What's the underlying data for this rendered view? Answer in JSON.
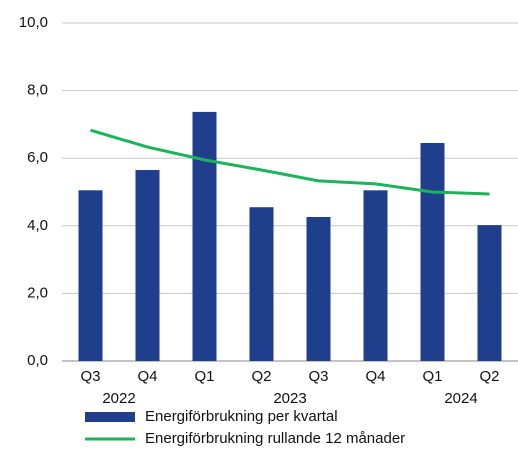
{
  "chart_data": {
    "type": "bar",
    "categories": [
      "Q3",
      "Q4",
      "Q1",
      "Q2",
      "Q3",
      "Q4",
      "Q1",
      "Q2"
    ],
    "category_years": [
      "2022",
      "2022",
      "2023",
      "2023",
      "2023",
      "2023",
      "2024",
      "2024"
    ],
    "series": [
      {
        "name": "Energiförbrukning per kvartal",
        "type": "bar",
        "color": "#1f3e8c",
        "values": [
          5.05,
          5.65,
          7.37,
          4.55,
          4.26,
          5.05,
          6.45,
          4.02
        ]
      },
      {
        "name": "Energiförbrukning rullande 12 månader",
        "type": "line",
        "color": "#1db35a",
        "values": [
          6.83,
          6.33,
          5.95,
          5.65,
          5.33,
          5.24,
          5.0,
          4.94
        ]
      }
    ],
    "ylim": [
      0,
      10
    ],
    "yticks": [
      {
        "value": 0,
        "label": "0,0"
      },
      {
        "value": 2,
        "label": "2,0"
      },
      {
        "value": 4,
        "label": "4,0"
      },
      {
        "value": 6,
        "label": "6,0"
      },
      {
        "value": 8,
        "label": "8,0"
      },
      {
        "value": 10,
        "label": "10,0"
      }
    ],
    "grid": true
  }
}
